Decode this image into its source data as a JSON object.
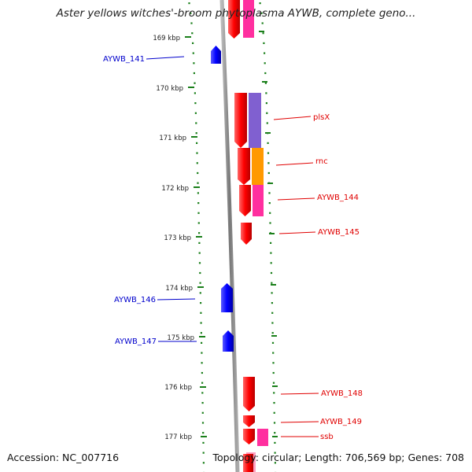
{
  "title": "Aster yellows witches'-broom phytoplasma AYWB, complete geno...",
  "footer": {
    "accession": "Accession: NC_007716",
    "summary": "Topology: circular; Length: 706,569 bp; Genes: 708"
  },
  "colors": {
    "forward_gene": "#ff0000",
    "reverse_gene": "#0000ff",
    "tick": "#1a7f1a",
    "backbone": "#888888",
    "cog_purple": "#8060d0",
    "cog_orange": "#ff9900",
    "cog_pink": "#ff2f9f",
    "cog_light_pink": "#ff9fc0",
    "label_forward": "#e00000",
    "label_reverse": "#0000cc"
  },
  "ticks": [
    {
      "label": "169 kbp"
    },
    {
      "label": "170 kbp"
    },
    {
      "label": "171 kbp"
    },
    {
      "label": "172 kbp"
    },
    {
      "label": "173 kbp"
    },
    {
      "label": "174 kbp"
    },
    {
      "label": "175 kbp"
    },
    {
      "label": "176 kbp"
    },
    {
      "label": "177 kbp"
    }
  ],
  "genes_reverse": [
    {
      "label": "AYWB_141"
    },
    {
      "label": "AYWB_146"
    },
    {
      "label": "AYWB_147"
    }
  ],
  "genes_forward": [
    {
      "label": "plsX"
    },
    {
      "label": "rnc"
    },
    {
      "label": "AYWB_144"
    },
    {
      "label": "AYWB_145"
    },
    {
      "label": "AYWB_148"
    },
    {
      "label": "AYWB_149"
    },
    {
      "label": "ssb"
    }
  ]
}
